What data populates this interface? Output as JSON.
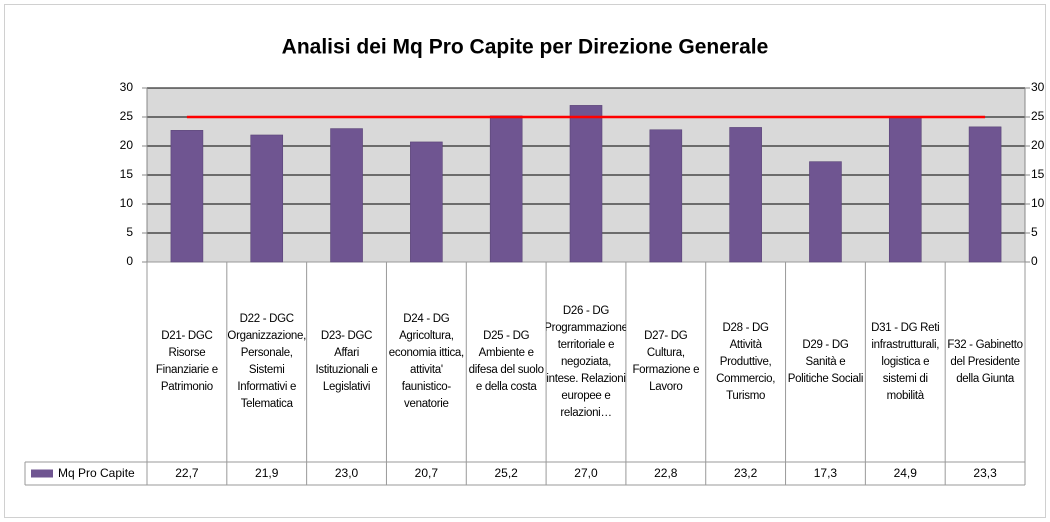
{
  "chart_data": {
    "type": "bar",
    "title": "Analisi dei Mq Pro Capite per Direzione Generale",
    "categories": [
      "D21- DGC Risorse Finanziarie e Patrimonio",
      "D22 - DGC Organizzazione, Personale, Sistemi Informativi e Telematica",
      "D23- DGC Affari Istituzionali e Legislativi",
      "D24 - DG Agricoltura, economia ittica, attivita' faunistico-venatorie",
      "D25 - DG Ambiente e difesa del suolo e della costa",
      "D26 - DG Programmazione territoriale e negoziata, intese. Relazioni europee e relazioni…",
      "D27- DG Cultura, Formazione e Lavoro",
      "D28 - DG Attività Produttive, Commercio, Turismo",
      "D29 - DG Sanità e Politiche Sociali",
      "D31 - DG Reti infrastrutturali, logistica e sistemi di mobilità",
      "F32 - Gabinetto del Presidente della Giunta"
    ],
    "series": [
      {
        "name": "Mq Pro Capite",
        "color": "#6f5591",
        "values": [
          22.7,
          21.9,
          23.0,
          20.7,
          25.2,
          27.0,
          22.8,
          23.2,
          17.3,
          24.9,
          23.3
        ],
        "value_labels": [
          "22,7",
          "21,9",
          "23,0",
          "20,7",
          "25,2",
          "27,0",
          "22,8",
          "23,2",
          "17,3",
          "24,9",
          "23,3"
        ]
      },
      {
        "type": "line",
        "color": "#ff0000",
        "axis": "y2",
        "values": [
          25,
          25,
          25,
          25,
          25,
          25,
          25,
          25,
          25,
          25,
          25
        ]
      }
    ],
    "ylim": [
      0,
      30
    ],
    "yticks": [
      0,
      5,
      10,
      15,
      20,
      25,
      30
    ],
    "y2lim": [
      0,
      30
    ],
    "y2ticks": [
      0,
      5,
      10,
      15,
      20,
      25,
      30
    ],
    "grid": true
  }
}
